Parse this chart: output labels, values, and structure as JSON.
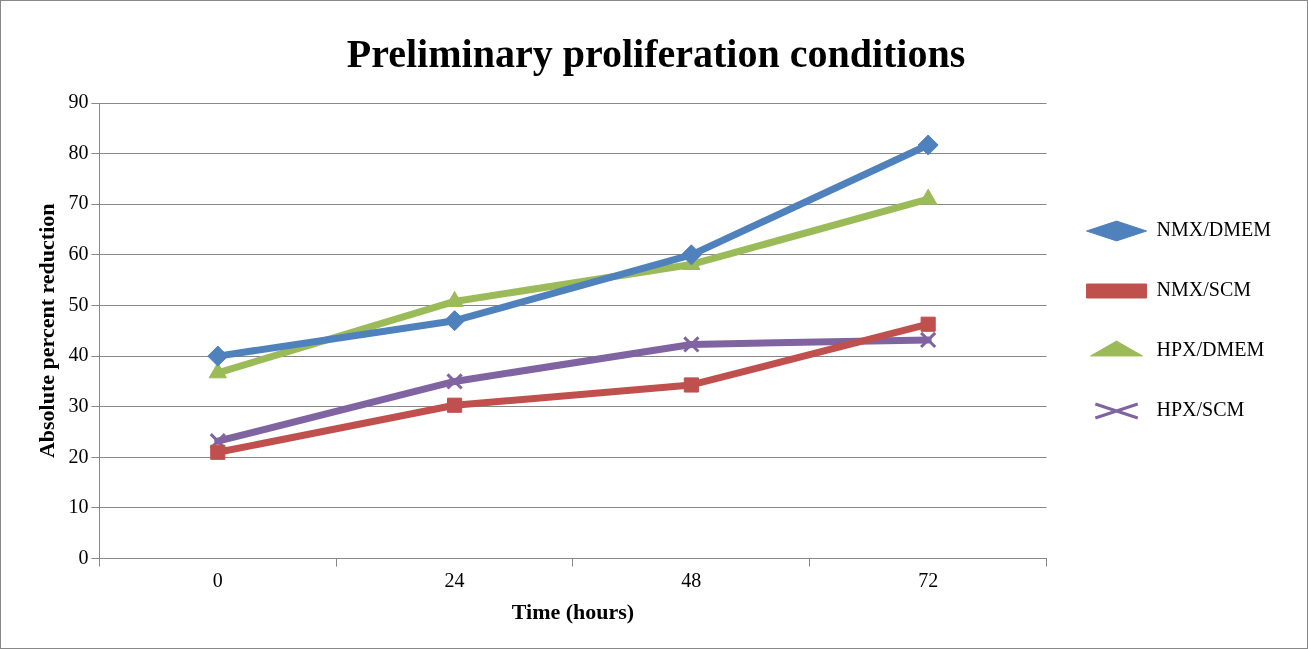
{
  "chart_data": {
    "type": "line",
    "title": "Preliminary proliferation conditions",
    "xlabel": "Time (hours)",
    "ylabel": "Absolute percent reduction",
    "categories": [
      "0",
      "24",
      "48",
      "72"
    ],
    "series": [
      {
        "name": "NMX/DMEM",
        "color": "#4f81bd",
        "marker": "diamond",
        "values": [
          40,
          47,
          60,
          81.7
        ]
      },
      {
        "name": "NMX/SCM",
        "color": "#c0504d",
        "marker": "square",
        "values": [
          21,
          30.3,
          34.3,
          46.3
        ]
      },
      {
        "name": "HPX/DMEM",
        "color": "#9bbb59",
        "marker": "triangle",
        "values": [
          36.7,
          50.8,
          58.1,
          71
        ]
      },
      {
        "name": "HPX/SCM",
        "color": "#8064a2",
        "marker": "cross",
        "values": [
          23.2,
          35,
          42.3,
          43.2
        ]
      }
    ],
    "ylim": [
      0,
      90
    ],
    "yticks": [
      0,
      10,
      20,
      30,
      40,
      50,
      60,
      70,
      80,
      90
    ],
    "grid": "y",
    "legend": "right",
    "line_style": "solid"
  }
}
